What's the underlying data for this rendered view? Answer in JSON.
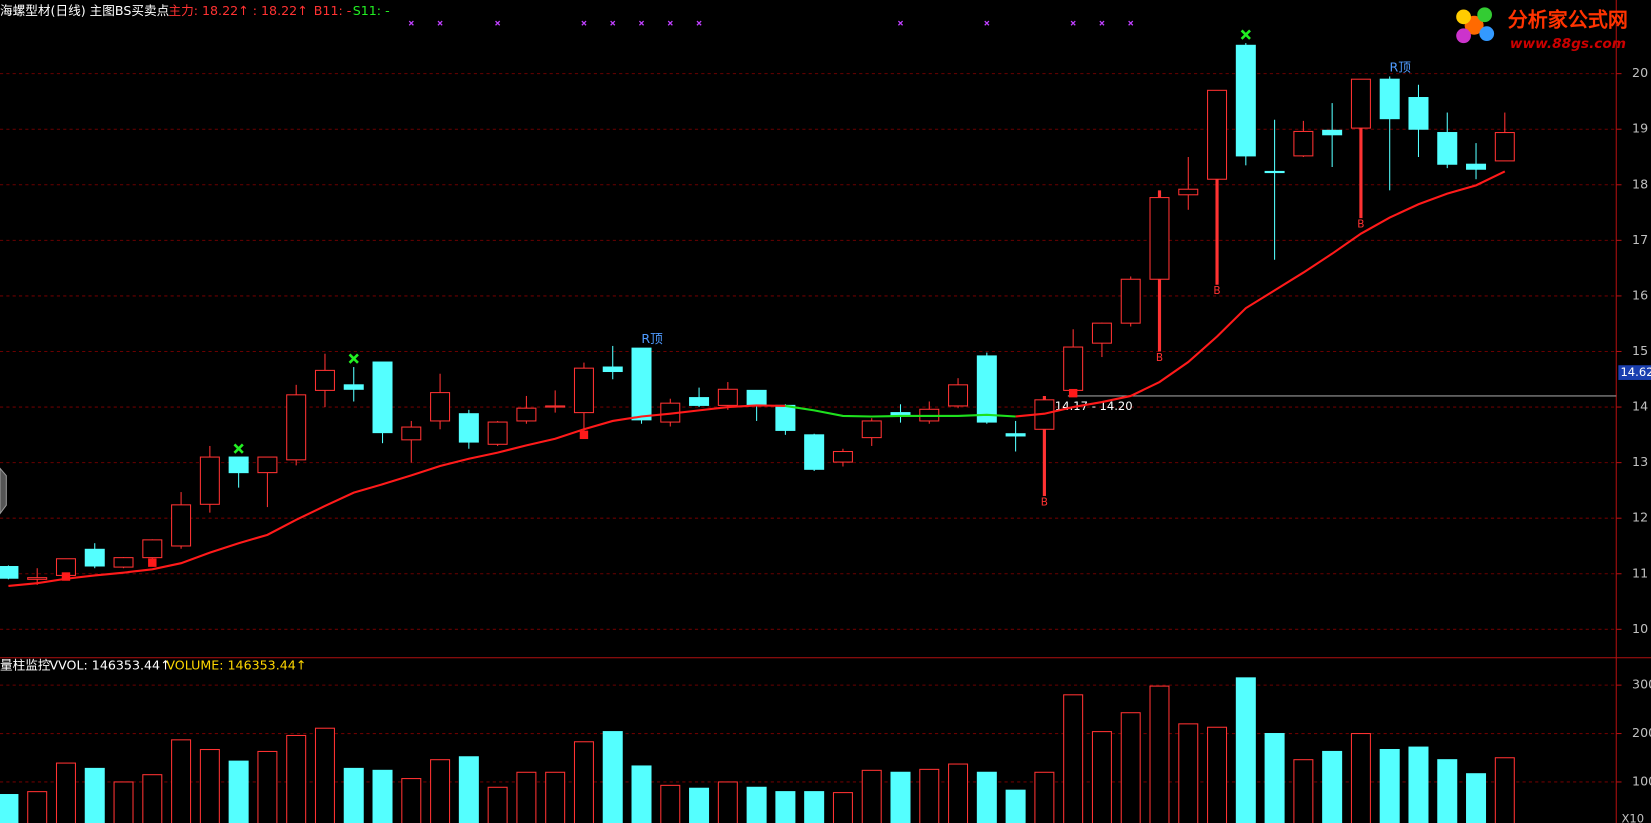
{
  "header": {
    "title": "海螺型材(日线) 主图BS买卖点",
    "main_force": "主力: 18.22↑ : 18.22↑",
    "b11": "B11: -",
    "s11": "S11: -"
  },
  "volume_header": {
    "title": "量柱监控",
    "vvol": "VVOL: 146353.44↑",
    "volume": "VOLUME: 146353.44↑"
  },
  "logo": {
    "name": "分析家公式网",
    "url": "www.88gs.com"
  },
  "chart_data": [
    {
      "type": "candlestick",
      "open": [
        11.13,
        10.9,
        10.97,
        11.44,
        11.12,
        11.29,
        11.5,
        12.25,
        13.1,
        12.82,
        13.05,
        14.3,
        14.4,
        14.81,
        13.41,
        13.75,
        13.88,
        13.33,
        13.75,
        14.0,
        13.9,
        14.72,
        15.06,
        13.73,
        14.17,
        14.03,
        14.3,
        14.03,
        13.5,
        13.01,
        13.45,
        13.9,
        13.75,
        14.02,
        14.92,
        13.52,
        13.6,
        14.3,
        15.15,
        15.51,
        16.3,
        17.82,
        18.1,
        20.51,
        18.24,
        18.52,
        18.98,
        19.02,
        19.9,
        19.57,
        18.94,
        18.37,
        18.43
      ],
      "high": [
        11.15,
        11.1,
        11.27,
        11.55,
        11.3,
        11.62,
        12.47,
        13.3,
        13.1,
        13.1,
        14.4,
        14.96,
        14.72,
        14.81,
        13.75,
        14.6,
        13.95,
        13.75,
        14.2,
        14.3,
        14.8,
        15.1,
        15.06,
        14.15,
        14.35,
        14.45,
        14.3,
        14.05,
        13.52,
        13.25,
        13.8,
        14.05,
        14.1,
        14.52,
        14.98,
        13.75,
        14.2,
        15.4,
        15.52,
        16.35,
        17.9,
        18.5,
        19.7,
        20.55,
        19.17,
        19.15,
        19.47,
        19.9,
        19.95,
        19.8,
        19.3,
        18.75,
        19.3
      ],
      "low": [
        10.9,
        10.8,
        10.95,
        11.1,
        11.1,
        11.2,
        11.45,
        12.1,
        12.55,
        12.2,
        12.95,
        14.0,
        14.1,
        13.35,
        13.0,
        13.6,
        13.25,
        13.3,
        13.7,
        13.9,
        13.5,
        14.5,
        13.7,
        13.65,
        14.0,
        13.95,
        13.75,
        13.5,
        12.85,
        12.93,
        13.3,
        13.72,
        13.7,
        13.98,
        13.7,
        13.2,
        12.4,
        14.25,
        14.9,
        15.45,
        15.0,
        17.55,
        16.2,
        18.35,
        16.65,
        18.5,
        18.32,
        17.4,
        17.9,
        18.5,
        18.3,
        18.1,
        18.43
      ],
      "close": [
        10.92,
        10.93,
        11.27,
        11.14,
        11.29,
        11.61,
        12.24,
        13.1,
        12.82,
        13.1,
        14.22,
        14.66,
        14.32,
        13.54,
        13.64,
        14.26,
        13.37,
        13.73,
        13.98,
        14.02,
        14.7,
        14.64,
        13.77,
        14.07,
        14.03,
        14.32,
        14.03,
        13.58,
        12.88,
        13.2,
        13.75,
        13.84,
        13.96,
        14.4,
        13.73,
        13.48,
        14.13,
        15.08,
        15.51,
        16.3,
        17.77,
        17.92,
        19.7,
        18.52,
        18.22,
        18.96,
        18.9,
        19.9,
        19.19,
        19.0,
        18.37,
        18.28,
        18.94
      ],
      "up_color": "#ff3232",
      "down_color": "#54ffff",
      "ylim": [
        9.545,
        21.136
      ],
      "yticks": [
        10,
        11,
        12,
        13,
        14,
        15,
        16,
        17,
        18,
        19,
        20
      ],
      "grid": true,
      "ma": [
        {
          "color": "#ff1a1a",
          "values": [
            10.78,
            10.83,
            10.91,
            10.97,
            11.02,
            11.08,
            11.19,
            11.38,
            11.55,
            11.7,
            11.97,
            12.22,
            12.46,
            12.61,
            12.77,
            12.94,
            13.07,
            13.18,
            13.31,
            13.43,
            13.6,
            13.75,
            13.83,
            13.88,
            13.94,
            14.0,
            14.03,
            14.02,
            null,
            null,
            null,
            null,
            null,
            null,
            null,
            13.83,
            13.88,
            14.0,
            14.09,
            14.2,
            14.45,
            14.81,
            15.27,
            15.78,
            16.1,
            16.42,
            16.76,
            17.12,
            17.41,
            17.65,
            17.84,
            17.99,
            18.24
          ]
        },
        {
          "color": "#1ee01e",
          "values": [
            null,
            null,
            null,
            null,
            null,
            null,
            null,
            null,
            null,
            null,
            null,
            null,
            null,
            null,
            null,
            null,
            null,
            null,
            null,
            null,
            null,
            null,
            null,
            null,
            null,
            null,
            null,
            14.02,
            13.94,
            13.84,
            13.83,
            13.84,
            13.84,
            13.84,
            13.86,
            13.83,
            null,
            null,
            null,
            null,
            null,
            null,
            null,
            null,
            null,
            null,
            null,
            null,
            null,
            null,
            null,
            null,
            null
          ]
        }
      ],
      "buy_signals": {
        "label": "B",
        "color": "#ff3232",
        "indices": [
          36,
          40,
          42,
          47
        ]
      },
      "top_signals": {
        "label": "R顶",
        "color": "#4f9bff",
        "indices": [
          22,
          48
        ]
      },
      "sell_marks": {
        "color": "#22ee22",
        "indices": [
          8,
          12,
          43
        ]
      },
      "low_marks": {
        "color": "#ff1a1a",
        "indices": [
          2,
          5,
          20,
          37
        ]
      },
      "top_markers": {
        "color": "#c040ff",
        "indices": [
          14,
          15,
          17,
          20,
          21,
          22,
          23,
          24,
          31,
          34,
          37,
          38,
          39
        ]
      },
      "price_line": 14.2,
      "annotation": {
        "text": "14.17 - 14.20",
        "index": 36
      },
      "price_tag": 14.62
    },
    {
      "type": "bar",
      "values": [
        74,
        80,
        139,
        128,
        100,
        115,
        187,
        167,
        143,
        163,
        196,
        211,
        128,
        124,
        107,
        146,
        152,
        89,
        120,
        120,
        183,
        204,
        133,
        93,
        87,
        100,
        89,
        80,
        80,
        78,
        124,
        120,
        126,
        137,
        120,
        83,
        120,
        280,
        204,
        243,
        298,
        220,
        213,
        315,
        200,
        146,
        163,
        200,
        167,
        172,
        146,
        117,
        150
      ],
      "up_color": "#ff3232",
      "down_color": "#54ffff",
      "ylim": [
        0,
        350
      ],
      "yticks": [
        100,
        200,
        300
      ],
      "unit_label": "X10"
    }
  ]
}
